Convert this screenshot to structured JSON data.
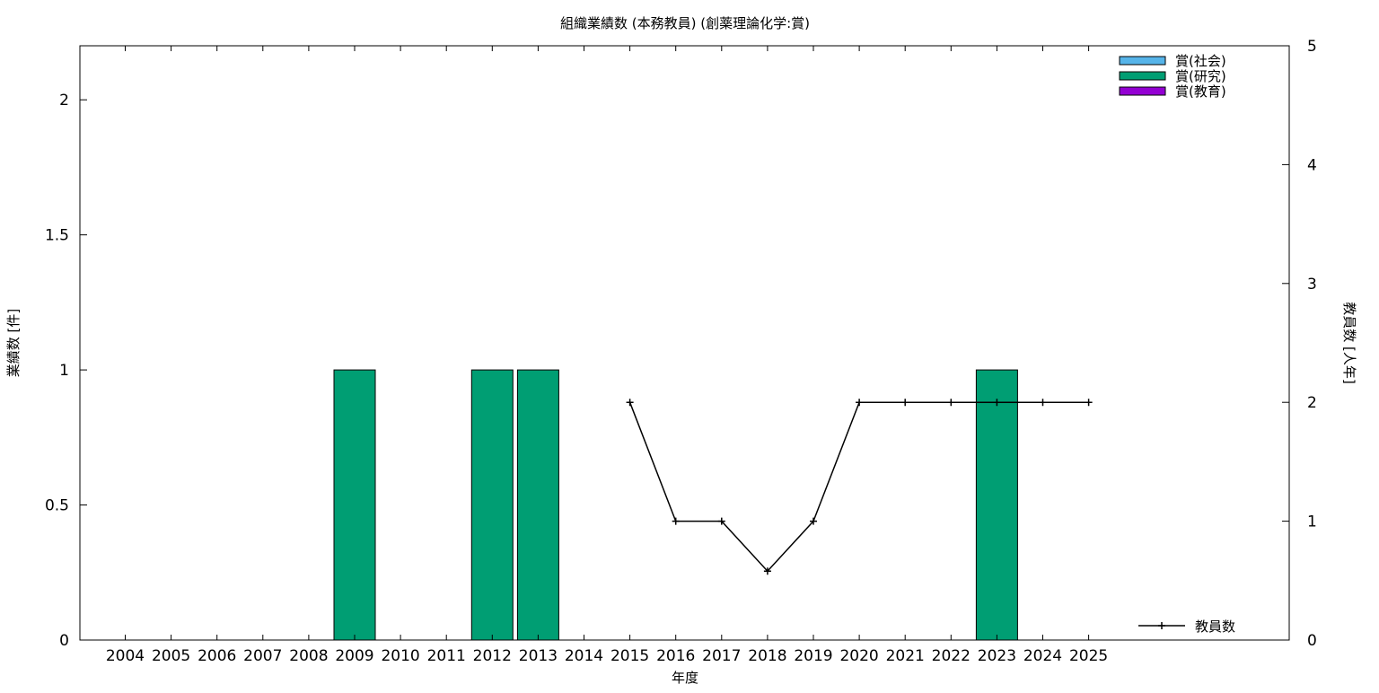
{
  "chart_data": {
    "type": "bar",
    "title": "組織業績数 (本務教員) (創薬理論化学:賞)",
    "xlabel": "年度",
    "ylabel": "業績数 [件]",
    "y2label": "教員数 [人年]",
    "categories": [
      "2004",
      "2005",
      "2006",
      "2007",
      "2008",
      "2009",
      "2010",
      "2011",
      "2012",
      "2013",
      "2014",
      "2015",
      "2016",
      "2017",
      "2018",
      "2019",
      "2020",
      "2021",
      "2022",
      "2023",
      "2024",
      "2025"
    ],
    "ylim": [
      0,
      2.2
    ],
    "y2lim": [
      0,
      5
    ],
    "yticks": [
      0,
      0.5,
      1,
      1.5,
      2
    ],
    "ytick_labels": [
      "0",
      "0.5",
      "1",
      "1.5",
      "2"
    ],
    "y2ticks": [
      0,
      1,
      2,
      3,
      4,
      5
    ],
    "y2tick_labels": [
      "0",
      "1",
      "2",
      "3",
      "4",
      "5"
    ],
    "series": [
      {
        "name": "賞(社会)",
        "color": "#56b4e9",
        "values": [
          0,
          0,
          0,
          0,
          0,
          0,
          0,
          0,
          0,
          0,
          0,
          0,
          0,
          0,
          0,
          0,
          0,
          0,
          0,
          0,
          0,
          0
        ]
      },
      {
        "name": "賞(研究)",
        "color": "#009e73",
        "values": [
          0,
          0,
          0,
          0,
          0,
          1,
          0,
          0,
          1,
          1,
          0,
          0,
          0,
          0,
          0,
          0,
          0,
          0,
          0,
          1,
          0,
          0
        ]
      },
      {
        "name": "賞(教育)",
        "color": "#9400d3",
        "values": [
          0,
          0,
          0,
          0,
          0,
          0,
          0,
          0,
          0,
          0,
          0,
          0,
          0,
          0,
          0,
          0,
          0,
          0,
          0,
          0,
          0,
          0
        ]
      }
    ],
    "line_series": {
      "name": "教員数",
      "color": "#000000",
      "axis": "y2",
      "x": [
        "2015",
        "2016",
        "2017",
        "2018",
        "2019",
        "2020",
        "2021",
        "2022",
        "2023",
        "2024",
        "2025"
      ],
      "values": [
        2,
        1,
        1,
        0.58,
        1,
        2,
        2,
        2,
        2,
        2,
        2
      ]
    },
    "legend_position": "top-right",
    "line_legend_position": "bottom-right",
    "grid": false
  }
}
